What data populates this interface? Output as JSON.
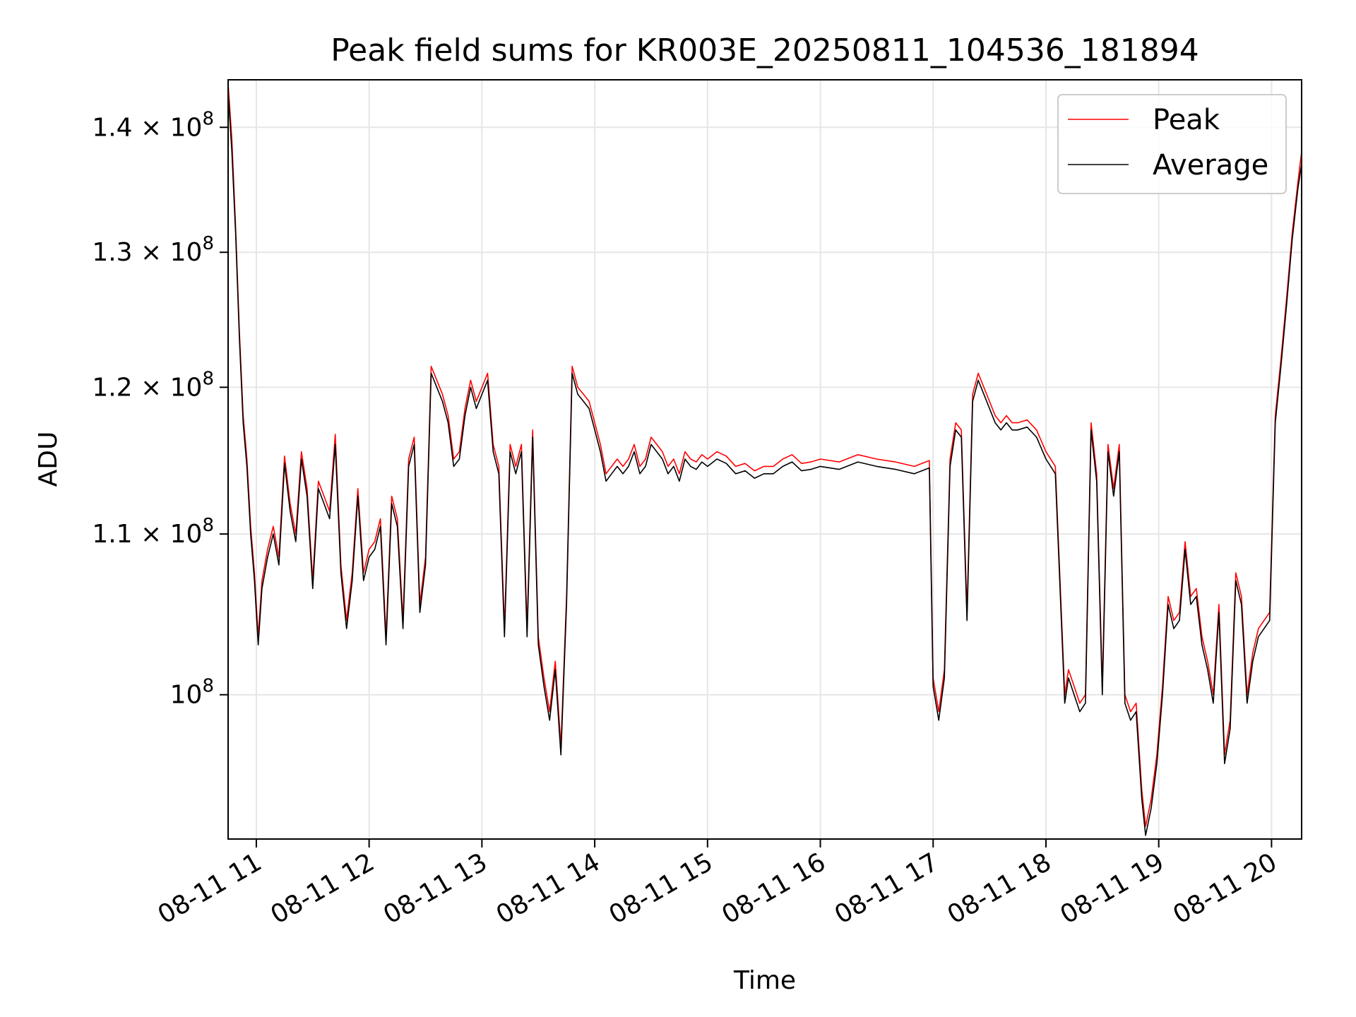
{
  "chart_data": {
    "type": "line",
    "title": "Peak field sums for KR003E_20250811_104536_181894",
    "xlabel": "Time",
    "ylabel": "ADU",
    "yscale": "log",
    "ylim": [
      91800000,
      144000000
    ],
    "xlim": [
      "2025-08-11 10:45",
      "2025-08-11 20:16"
    ],
    "grid": true,
    "legend_placement": "top-right",
    "x_ticks": [
      {
        "x": "2025-08-11 11:00",
        "label": "08-11 11"
      },
      {
        "x": "2025-08-11 12:00",
        "label": "08-11 12"
      },
      {
        "x": "2025-08-11 13:00",
        "label": "08-11 13"
      },
      {
        "x": "2025-08-11 14:00",
        "label": "08-11 14"
      },
      {
        "x": "2025-08-11 15:00",
        "label": "08-11 15"
      },
      {
        "x": "2025-08-11 16:00",
        "label": "08-11 16"
      },
      {
        "x": "2025-08-11 17:00",
        "label": "08-11 17"
      },
      {
        "x": "2025-08-11 18:00",
        "label": "08-11 18"
      },
      {
        "x": "2025-08-11 19:00",
        "label": "08-11 19"
      },
      {
        "x": "2025-08-11 20:00",
        "label": "08-11 20"
      }
    ],
    "y_ticks": [
      {
        "value": 100000000,
        "base": "10",
        "exp": "8",
        "mant": ""
      },
      {
        "value": 110000000,
        "base": "10",
        "exp": "8",
        "mant": "1.1 × "
      },
      {
        "value": 120000000,
        "base": "10",
        "exp": "8",
        "mant": "1.2 × "
      },
      {
        "value": 130000000,
        "base": "10",
        "exp": "8",
        "mant": "1.3 × "
      },
      {
        "value": 140000000,
        "base": "10",
        "exp": "8",
        "mant": "1.4 × "
      }
    ],
    "series": [
      {
        "name": "Peak",
        "color": "#ff0000",
        "x": [
          "2025-08-11 10:45",
          "2025-08-11 10:47",
          "2025-08-11 10:49",
          "2025-08-11 10:51",
          "2025-08-11 10:53",
          "2025-08-11 10:55",
          "2025-08-11 10:57",
          "2025-08-11 10:59",
          "2025-08-11 11:01",
          "2025-08-11 11:03",
          "2025-08-11 11:06",
          "2025-08-11 11:09",
          "2025-08-11 11:12",
          "2025-08-11 11:15",
          "2025-08-11 11:18",
          "2025-08-11 11:21",
          "2025-08-11 11:24",
          "2025-08-11 11:27",
          "2025-08-11 11:30",
          "2025-08-11 11:33",
          "2025-08-11 11:36",
          "2025-08-11 11:39",
          "2025-08-11 11:42",
          "2025-08-11 11:45",
          "2025-08-11 11:48",
          "2025-08-11 11:51",
          "2025-08-11 11:54",
          "2025-08-11 11:57",
          "2025-08-11 12:00",
          "2025-08-11 12:03",
          "2025-08-11 12:06",
          "2025-08-11 12:09",
          "2025-08-11 12:12",
          "2025-08-11 12:15",
          "2025-08-11 12:18",
          "2025-08-11 12:21",
          "2025-08-11 12:24",
          "2025-08-11 12:27",
          "2025-08-11 12:30",
          "2025-08-11 12:33",
          "2025-08-11 12:36",
          "2025-08-11 12:39",
          "2025-08-11 12:42",
          "2025-08-11 12:45",
          "2025-08-11 12:48",
          "2025-08-11 12:51",
          "2025-08-11 12:54",
          "2025-08-11 12:57",
          "2025-08-11 13:00",
          "2025-08-11 13:03",
          "2025-08-11 13:06",
          "2025-08-11 13:09",
          "2025-08-11 13:12",
          "2025-08-11 13:15",
          "2025-08-11 13:18",
          "2025-08-11 13:21",
          "2025-08-11 13:24",
          "2025-08-11 13:27",
          "2025-08-11 13:30",
          "2025-08-11 13:33",
          "2025-08-11 13:36",
          "2025-08-11 13:39",
          "2025-08-11 13:42",
          "2025-08-11 13:45",
          "2025-08-11 13:48",
          "2025-08-11 13:51",
          "2025-08-11 13:54",
          "2025-08-11 13:57",
          "2025-08-11 14:00",
          "2025-08-11 14:03",
          "2025-08-11 14:06",
          "2025-08-11 14:09",
          "2025-08-11 14:12",
          "2025-08-11 14:15",
          "2025-08-11 14:18",
          "2025-08-11 14:21",
          "2025-08-11 14:24",
          "2025-08-11 14:27",
          "2025-08-11 14:30",
          "2025-08-11 14:33",
          "2025-08-11 14:36",
          "2025-08-11 14:39",
          "2025-08-11 14:42",
          "2025-08-11 14:45",
          "2025-08-11 14:48",
          "2025-08-11 14:51",
          "2025-08-11 14:54",
          "2025-08-11 14:57",
          "2025-08-11 15:00",
          "2025-08-11 15:05",
          "2025-08-11 15:10",
          "2025-08-11 15:15",
          "2025-08-11 15:20",
          "2025-08-11 15:25",
          "2025-08-11 15:30",
          "2025-08-11 15:35",
          "2025-08-11 15:40",
          "2025-08-11 15:45",
          "2025-08-11 15:50",
          "2025-08-11 15:55",
          "2025-08-11 16:00",
          "2025-08-11 16:10",
          "2025-08-11 16:20",
          "2025-08-11 16:30",
          "2025-08-11 16:40",
          "2025-08-11 16:50",
          "2025-08-11 16:58",
          "2025-08-11 17:00",
          "2025-08-11 17:03",
          "2025-08-11 17:06",
          "2025-08-11 17:09",
          "2025-08-11 17:12",
          "2025-08-11 17:15",
          "2025-08-11 17:18",
          "2025-08-11 17:21",
          "2025-08-11 17:24",
          "2025-08-11 17:27",
          "2025-08-11 17:30",
          "2025-08-11 17:33",
          "2025-08-11 17:36",
          "2025-08-11 17:39",
          "2025-08-11 17:42",
          "2025-08-11 17:45",
          "2025-08-11 17:50",
          "2025-08-11 17:55",
          "2025-08-11 18:00",
          "2025-08-11 18:05",
          "2025-08-11 18:10",
          "2025-08-11 18:12",
          "2025-08-11 18:15",
          "2025-08-11 18:18",
          "2025-08-11 18:21",
          "2025-08-11 18:24",
          "2025-08-11 18:27",
          "2025-08-11 18:30",
          "2025-08-11 18:33",
          "2025-08-11 18:36",
          "2025-08-11 18:39",
          "2025-08-11 18:42",
          "2025-08-11 18:45",
          "2025-08-11 18:48",
          "2025-08-11 18:51",
          "2025-08-11 18:53",
          "2025-08-11 18:56",
          "2025-08-11 18:59",
          "2025-08-11 19:02",
          "2025-08-11 19:05",
          "2025-08-11 19:08",
          "2025-08-11 19:11",
          "2025-08-11 19:14",
          "2025-08-11 19:17",
          "2025-08-11 19:20",
          "2025-08-11 19:23",
          "2025-08-11 19:26",
          "2025-08-11 19:29",
          "2025-08-11 19:32",
          "2025-08-11 19:35",
          "2025-08-11 19:38",
          "2025-08-11 19:41",
          "2025-08-11 19:44",
          "2025-08-11 19:47",
          "2025-08-11 19:50",
          "2025-08-11 19:53",
          "2025-08-11 19:56",
          "2025-08-11 19:59",
          "2025-08-11 20:02",
          "2025-08-11 20:05",
          "2025-08-11 20:08",
          "2025-08-11 20:11",
          "2025-08-11 20:14",
          "2025-08-11 20:16"
        ],
        "y": [
          143700000,
          139000000,
          132000000,
          124000000,
          118000000,
          115000000,
          110500000,
          107500000,
          103500000,
          107000000,
          109000000,
          110500000,
          108500000,
          115200000,
          112000000,
          110000000,
          115500000,
          113000000,
          107000000,
          113500000,
          112500000,
          111500000,
          116700000,
          108000000,
          104500000,
          107500000,
          113000000,
          107500000,
          109000000,
          109500000,
          111000000,
          103500000,
          112500000,
          111000000,
          104500000,
          115000000,
          116500000,
          105500000,
          108500000,
          121500000,
          120500000,
          119500000,
          118000000,
          115000000,
          115500000,
          118500000,
          120500000,
          119000000,
          120000000,
          121000000,
          116000000,
          114500000,
          104000000,
          116000000,
          114500000,
          116000000,
          104000000,
          117000000,
          103500000,
          101000000,
          99000000,
          102000000,
          97000000,
          106000000,
          121500000,
          120000000,
          119500000,
          119000000,
          117500000,
          116000000,
          114000000,
          114500000,
          115000000,
          114500000,
          115000000,
          116000000,
          114500000,
          115000000,
          116500000,
          116000000,
          115500000,
          114500000,
          115000000,
          114000000,
          115500000,
          115000000,
          114800000,
          115300000,
          115000000,
          115500000,
          115200000,
          114500000,
          114700000,
          114200000,
          114500000,
          114500000,
          115000000,
          115300000,
          114700000,
          114800000,
          115000000,
          114800000,
          115300000,
          115000000,
          114800000,
          114500000,
          114900000,
          101000000,
          99000000,
          101500000,
          115000000,
          117500000,
          117000000,
          105000000,
          119500000,
          121000000,
          120000000,
          119000000,
          118000000,
          117500000,
          118000000,
          117500000,
          117500000,
          117700000,
          117000000,
          115500000,
          114500000,
          100000000,
          101500000,
          100500000,
          99500000,
          100000000,
          117500000,
          114000000,
          100500000,
          116000000,
          113000000,
          116000000,
          100000000,
          99000000,
          99500000,
          94500000,
          92500000,
          94000000,
          96500000,
          100500000,
          106000000,
          104500000,
          105000000,
          109500000,
          106000000,
          106500000,
          103500000,
          102000000,
          100000000,
          105500000,
          96500000,
          98500000,
          107500000,
          106000000,
          100000000,
          102500000,
          104000000,
          104500000,
          105000000,
          118000000,
          122000000,
          126500000,
          131500000,
          135500000,
          138000000
        ]
      },
      {
        "name": "Average",
        "color": "#000000",
        "x": [
          "2025-08-11 10:45",
          "2025-08-11 10:47",
          "2025-08-11 10:49",
          "2025-08-11 10:51",
          "2025-08-11 10:53",
          "2025-08-11 10:55",
          "2025-08-11 10:57",
          "2025-08-11 10:59",
          "2025-08-11 11:01",
          "2025-08-11 11:03",
          "2025-08-11 11:06",
          "2025-08-11 11:09",
          "2025-08-11 11:12",
          "2025-08-11 11:15",
          "2025-08-11 11:18",
          "2025-08-11 11:21",
          "2025-08-11 11:24",
          "2025-08-11 11:27",
          "2025-08-11 11:30",
          "2025-08-11 11:33",
          "2025-08-11 11:36",
          "2025-08-11 11:39",
          "2025-08-11 11:42",
          "2025-08-11 11:45",
          "2025-08-11 11:48",
          "2025-08-11 11:51",
          "2025-08-11 11:54",
          "2025-08-11 11:57",
          "2025-08-11 12:00",
          "2025-08-11 12:03",
          "2025-08-11 12:06",
          "2025-08-11 12:09",
          "2025-08-11 12:12",
          "2025-08-11 12:15",
          "2025-08-11 12:18",
          "2025-08-11 12:21",
          "2025-08-11 12:24",
          "2025-08-11 12:27",
          "2025-08-11 12:30",
          "2025-08-11 12:33",
          "2025-08-11 12:36",
          "2025-08-11 12:39",
          "2025-08-11 12:42",
          "2025-08-11 12:45",
          "2025-08-11 12:48",
          "2025-08-11 12:51",
          "2025-08-11 12:54",
          "2025-08-11 12:57",
          "2025-08-11 13:00",
          "2025-08-11 13:03",
          "2025-08-11 13:06",
          "2025-08-11 13:09",
          "2025-08-11 13:12",
          "2025-08-11 13:15",
          "2025-08-11 13:18",
          "2025-08-11 13:21",
          "2025-08-11 13:24",
          "2025-08-11 13:27",
          "2025-08-11 13:30",
          "2025-08-11 13:33",
          "2025-08-11 13:36",
          "2025-08-11 13:39",
          "2025-08-11 13:42",
          "2025-08-11 13:45",
          "2025-08-11 13:48",
          "2025-08-11 13:51",
          "2025-08-11 13:54",
          "2025-08-11 13:57",
          "2025-08-11 14:00",
          "2025-08-11 14:03",
          "2025-08-11 14:06",
          "2025-08-11 14:09",
          "2025-08-11 14:12",
          "2025-08-11 14:15",
          "2025-08-11 14:18",
          "2025-08-11 14:21",
          "2025-08-11 14:24",
          "2025-08-11 14:27",
          "2025-08-11 14:30",
          "2025-08-11 14:33",
          "2025-08-11 14:36",
          "2025-08-11 14:39",
          "2025-08-11 14:42",
          "2025-08-11 14:45",
          "2025-08-11 14:48",
          "2025-08-11 14:51",
          "2025-08-11 14:54",
          "2025-08-11 14:57",
          "2025-08-11 15:00",
          "2025-08-11 15:05",
          "2025-08-11 15:10",
          "2025-08-11 15:15",
          "2025-08-11 15:20",
          "2025-08-11 15:25",
          "2025-08-11 15:30",
          "2025-08-11 15:35",
          "2025-08-11 15:40",
          "2025-08-11 15:45",
          "2025-08-11 15:50",
          "2025-08-11 15:55",
          "2025-08-11 16:00",
          "2025-08-11 16:10",
          "2025-08-11 16:20",
          "2025-08-11 16:30",
          "2025-08-11 16:40",
          "2025-08-11 16:50",
          "2025-08-11 16:58",
          "2025-08-11 17:00",
          "2025-08-11 17:03",
          "2025-08-11 17:06",
          "2025-08-11 17:09",
          "2025-08-11 17:12",
          "2025-08-11 17:15",
          "2025-08-11 17:18",
          "2025-08-11 17:21",
          "2025-08-11 17:24",
          "2025-08-11 17:27",
          "2025-08-11 17:30",
          "2025-08-11 17:33",
          "2025-08-11 17:36",
          "2025-08-11 17:39",
          "2025-08-11 17:42",
          "2025-08-11 17:45",
          "2025-08-11 17:50",
          "2025-08-11 17:55",
          "2025-08-11 18:00",
          "2025-08-11 18:05",
          "2025-08-11 18:10",
          "2025-08-11 18:12",
          "2025-08-11 18:15",
          "2025-08-11 18:18",
          "2025-08-11 18:21",
          "2025-08-11 18:24",
          "2025-08-11 18:27",
          "2025-08-11 18:30",
          "2025-08-11 18:33",
          "2025-08-11 18:36",
          "2025-08-11 18:39",
          "2025-08-11 18:42",
          "2025-08-11 18:45",
          "2025-08-11 18:48",
          "2025-08-11 18:51",
          "2025-08-11 18:53",
          "2025-08-11 18:56",
          "2025-08-11 18:59",
          "2025-08-11 19:02",
          "2025-08-11 19:05",
          "2025-08-11 19:08",
          "2025-08-11 19:11",
          "2025-08-11 19:14",
          "2025-08-11 19:17",
          "2025-08-11 19:20",
          "2025-08-11 19:23",
          "2025-08-11 19:26",
          "2025-08-11 19:29",
          "2025-08-11 19:32",
          "2025-08-11 19:35",
          "2025-08-11 19:38",
          "2025-08-11 19:41",
          "2025-08-11 19:44",
          "2025-08-11 19:47",
          "2025-08-11 19:50",
          "2025-08-11 19:53",
          "2025-08-11 19:56",
          "2025-08-11 19:59",
          "2025-08-11 20:02",
          "2025-08-11 20:05",
          "2025-08-11 20:08",
          "2025-08-11 20:11",
          "2025-08-11 20:14",
          "2025-08-11 20:16"
        ],
        "y": [
          143000000,
          138000000,
          131500000,
          123500000,
          117500000,
          114500000,
          110000000,
          107000000,
          103000000,
          106500000,
          108500000,
          110000000,
          108000000,
          114700000,
          111500000,
          109500000,
          115000000,
          112500000,
          106500000,
          113000000,
          112000000,
          111000000,
          116000000,
          107500000,
          104000000,
          107000000,
          112500000,
          107000000,
          108500000,
          109000000,
          110500000,
          103000000,
          112000000,
          110500000,
          104000000,
          114500000,
          116000000,
          105000000,
          108000000,
          121000000,
          120000000,
          119000000,
          117500000,
          114500000,
          115000000,
          118000000,
          120000000,
          118500000,
          119500000,
          120500000,
          115500000,
          114000000,
          103500000,
          115500000,
          114000000,
          115500000,
          103500000,
          116500000,
          103000000,
          100500000,
          98500000,
          101500000,
          96500000,
          105500000,
          121000000,
          119500000,
          119000000,
          118500000,
          117000000,
          115500000,
          113500000,
          114000000,
          114500000,
          114000000,
          114500000,
          115500000,
          114000000,
          114500000,
          116000000,
          115500000,
          115000000,
          114000000,
          114500000,
          113500000,
          115000000,
          114500000,
          114300000,
          114800000,
          114500000,
          115000000,
          114700000,
          114000000,
          114200000,
          113700000,
          114000000,
          114000000,
          114500000,
          114800000,
          114200000,
          114300000,
          114500000,
          114300000,
          114800000,
          114500000,
          114300000,
          114000000,
          114400000,
          100500000,
          98500000,
          101000000,
          114500000,
          117000000,
          116500000,
          104500000,
          119000000,
          120500000,
          119500000,
          118500000,
          117500000,
          117000000,
          117500000,
          117000000,
          117000000,
          117200000,
          116500000,
          115000000,
          114000000,
          99500000,
          101000000,
          100000000,
          99000000,
          99500000,
          117000000,
          113500000,
          100000000,
          115500000,
          112500000,
          115500000,
          99500000,
          98500000,
          99000000,
          94000000,
          92000000,
          93500000,
          96000000,
          100000000,
          105500000,
          104000000,
          104500000,
          109000000,
          105500000,
          106000000,
          103000000,
          101500000,
          99500000,
          105000000,
          96000000,
          98000000,
          107000000,
          105500000,
          99500000,
          102000000,
          103500000,
          104000000,
          104500000,
          117500000,
          121500000,
          126000000,
          131000000,
          135000000,
          137000000
        ]
      }
    ]
  }
}
